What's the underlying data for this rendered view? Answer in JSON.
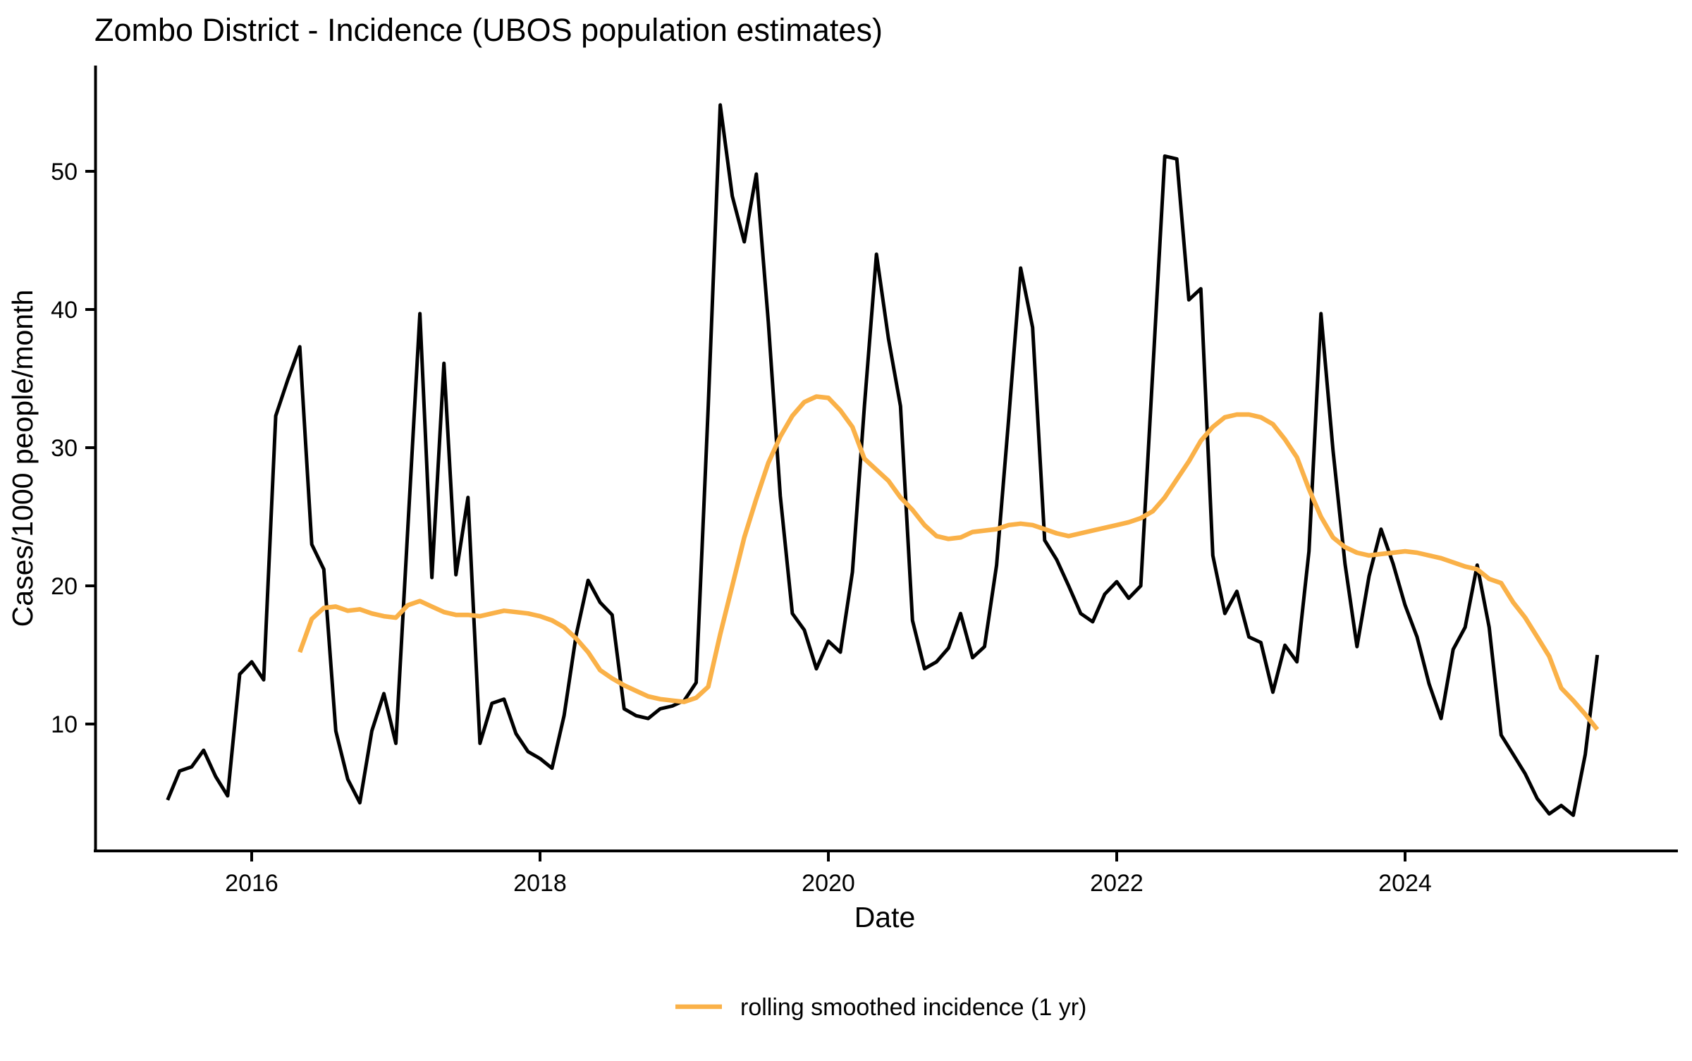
{
  "title": "Zombo District - Incidence (UBOS population estimates)",
  "x_axis": {
    "label": "Date",
    "ticks": [
      {
        "label": "2016",
        "year": 2016
      },
      {
        "label": "2018",
        "year": 2018
      },
      {
        "label": "2020",
        "year": 2020
      },
      {
        "label": "2022",
        "year": 2022
      },
      {
        "label": "2024",
        "year": 2024
      }
    ]
  },
  "y_axis": {
    "label": "Cases/1000 people/month",
    "ticks": [
      10,
      20,
      30,
      40,
      50
    ]
  },
  "legend": {
    "items": [
      {
        "label": "rolling smoothed incidence (1 yr)",
        "series": "smoothed"
      }
    ]
  },
  "colors": {
    "incidence_line": "#000000",
    "smoothed_line": "#FAB148",
    "axis": "#000000",
    "background": "#FFFFFF"
  },
  "chart_data": {
    "type": "line",
    "title": "Zombo District - Incidence (UBOS population estimates)",
    "xlabel": "Date",
    "ylabel": "Cases/1000 people/month",
    "x_unit": "month",
    "grid": false,
    "legend_position": "bottom",
    "ylim": [
      0,
      57
    ],
    "xlim": [
      "2015-05",
      "2025-07"
    ],
    "series": [
      {
        "name": "monthly incidence",
        "color": "#000000",
        "start": "2015-06",
        "values": [
          4.5,
          6.6,
          6.9,
          8.1,
          6.2,
          4.8,
          13.6,
          14.5,
          13.2,
          32.3,
          34.9,
          37.3,
          23.0,
          21.2,
          9.5,
          6.0,
          4.3,
          9.5,
          12.2,
          8.6,
          24.2,
          39.7,
          20.6,
          36.1,
          20.8,
          26.4,
          8.6,
          11.5,
          11.8,
          9.3,
          8.0,
          7.5,
          6.8,
          10.6,
          16.4,
          20.4,
          18.8,
          17.9,
          11.1,
          10.6,
          10.4,
          11.1,
          11.3,
          11.7,
          13.0,
          33.0,
          54.8,
          48.2,
          44.9,
          49.8,
          39.1,
          26.5,
          18.0,
          16.8,
          14.0,
          16.0,
          15.2,
          21.0,
          33.0,
          44.0,
          37.9,
          33.0,
          17.5,
          14.0,
          14.5,
          15.5,
          18.0,
          14.8,
          15.6,
          21.5,
          32.0,
          43.0,
          38.7,
          23.3,
          21.9,
          20.0,
          18.0,
          17.4,
          19.4,
          20.3,
          19.1,
          20.0,
          35.5,
          51.1,
          50.9,
          40.7,
          41.5,
          22.2,
          18.0,
          19.6,
          16.3,
          15.9,
          12.3,
          15.7,
          14.5,
          22.5,
          39.7,
          29.8,
          21.6,
          15.6,
          20.7,
          24.1,
          21.6,
          18.6,
          16.3,
          12.9,
          10.4,
          15.4,
          17.0,
          21.5,
          17.0,
          9.2,
          7.8,
          6.4,
          4.6,
          3.5,
          4.1,
          3.4,
          7.8,
          15.0
        ]
      },
      {
        "name": "rolling smoothed incidence (1 yr)",
        "color": "#FAB148",
        "start": "2016-05",
        "values": [
          15.2,
          17.6,
          18.4,
          18.5,
          18.2,
          18.3,
          18.0,
          17.8,
          17.7,
          18.6,
          18.9,
          18.5,
          18.1,
          17.9,
          17.9,
          17.8,
          18.0,
          18.2,
          18.1,
          18.0,
          17.8,
          17.5,
          17.0,
          16.2,
          15.2,
          13.9,
          13.3,
          12.8,
          12.4,
          12.0,
          11.8,
          11.7,
          11.6,
          11.9,
          12.7,
          16.5,
          20.0,
          23.5,
          26.3,
          28.9,
          30.8,
          32.3,
          33.3,
          33.7,
          33.6,
          32.7,
          31.5,
          29.2,
          28.4,
          27.6,
          26.4,
          25.5,
          24.4,
          23.6,
          23.4,
          23.5,
          23.9,
          24.0,
          24.1,
          24.4,
          24.5,
          24.4,
          24.1,
          23.8,
          23.6,
          23.8,
          24.0,
          24.2,
          24.4,
          24.6,
          24.9,
          25.4,
          26.4,
          27.7,
          29.0,
          30.5,
          31.5,
          32.2,
          32.4,
          32.4,
          32.2,
          31.7,
          30.6,
          29.3,
          27.0,
          25.0,
          23.5,
          22.8,
          22.4,
          22.2,
          22.3,
          22.4,
          22.5,
          22.4,
          22.2,
          22.0,
          21.7,
          21.4,
          21.2,
          20.5,
          20.2,
          18.8,
          17.7,
          16.3,
          14.9,
          12.6,
          11.7,
          10.7,
          9.6
        ]
      }
    ]
  }
}
